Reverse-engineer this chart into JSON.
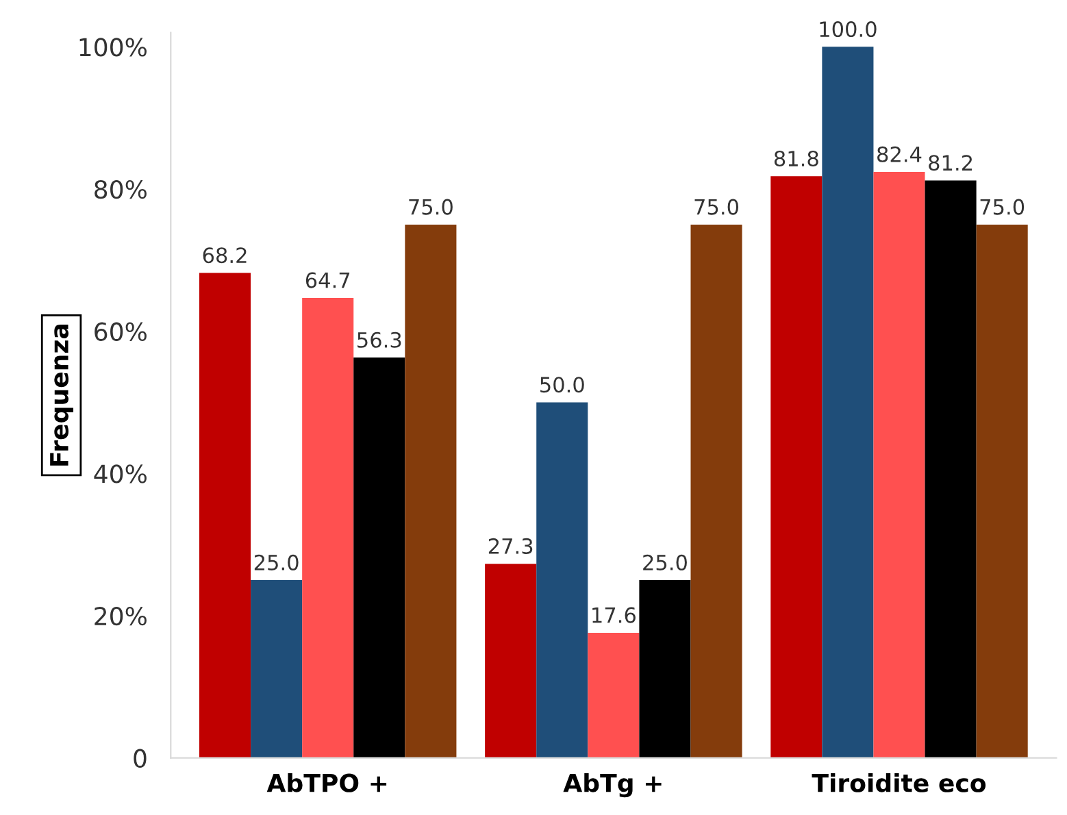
{
  "chart_data": {
    "type": "bar",
    "ylabel": "Frequenza",
    "categories": [
      "AbTPO +",
      "AbTg +",
      "Tiroidite eco"
    ],
    "series": [
      {
        "color": "#c00000",
        "values": [
          68.2,
          27.3,
          81.8
        ],
        "value_labels": [
          "68.2",
          "27.3",
          "81.8"
        ]
      },
      {
        "color": "#1f4e79",
        "values": [
          25.0,
          50.0,
          100.0
        ],
        "value_labels": [
          "25.0",
          "50.0",
          "100.0"
        ]
      },
      {
        "color": "#ff5050",
        "values": [
          64.7,
          17.6,
          82.4
        ],
        "value_labels": [
          "64.7",
          "17.6",
          "82.4"
        ]
      },
      {
        "color": "#000000",
        "values": [
          56.3,
          25.0,
          81.2
        ],
        "value_labels": [
          "56.3",
          "25.0",
          "81.2"
        ]
      },
      {
        "color": "#843c0c",
        "values": [
          75.0,
          75.0,
          75.0
        ],
        "value_labels": [
          "75.0",
          "75.0",
          "75.0"
        ]
      }
    ],
    "ylim": [
      0,
      102
    ],
    "yticks": [
      {
        "value": 0,
        "label": "0"
      },
      {
        "value": 20,
        "label": "20%"
      },
      {
        "value": 40,
        "label": "40%"
      },
      {
        "value": 60,
        "label": "60%"
      },
      {
        "value": 80,
        "label": "80%"
      },
      {
        "value": 100,
        "label": "100%"
      }
    ],
    "grid": false,
    "legend": false
  }
}
